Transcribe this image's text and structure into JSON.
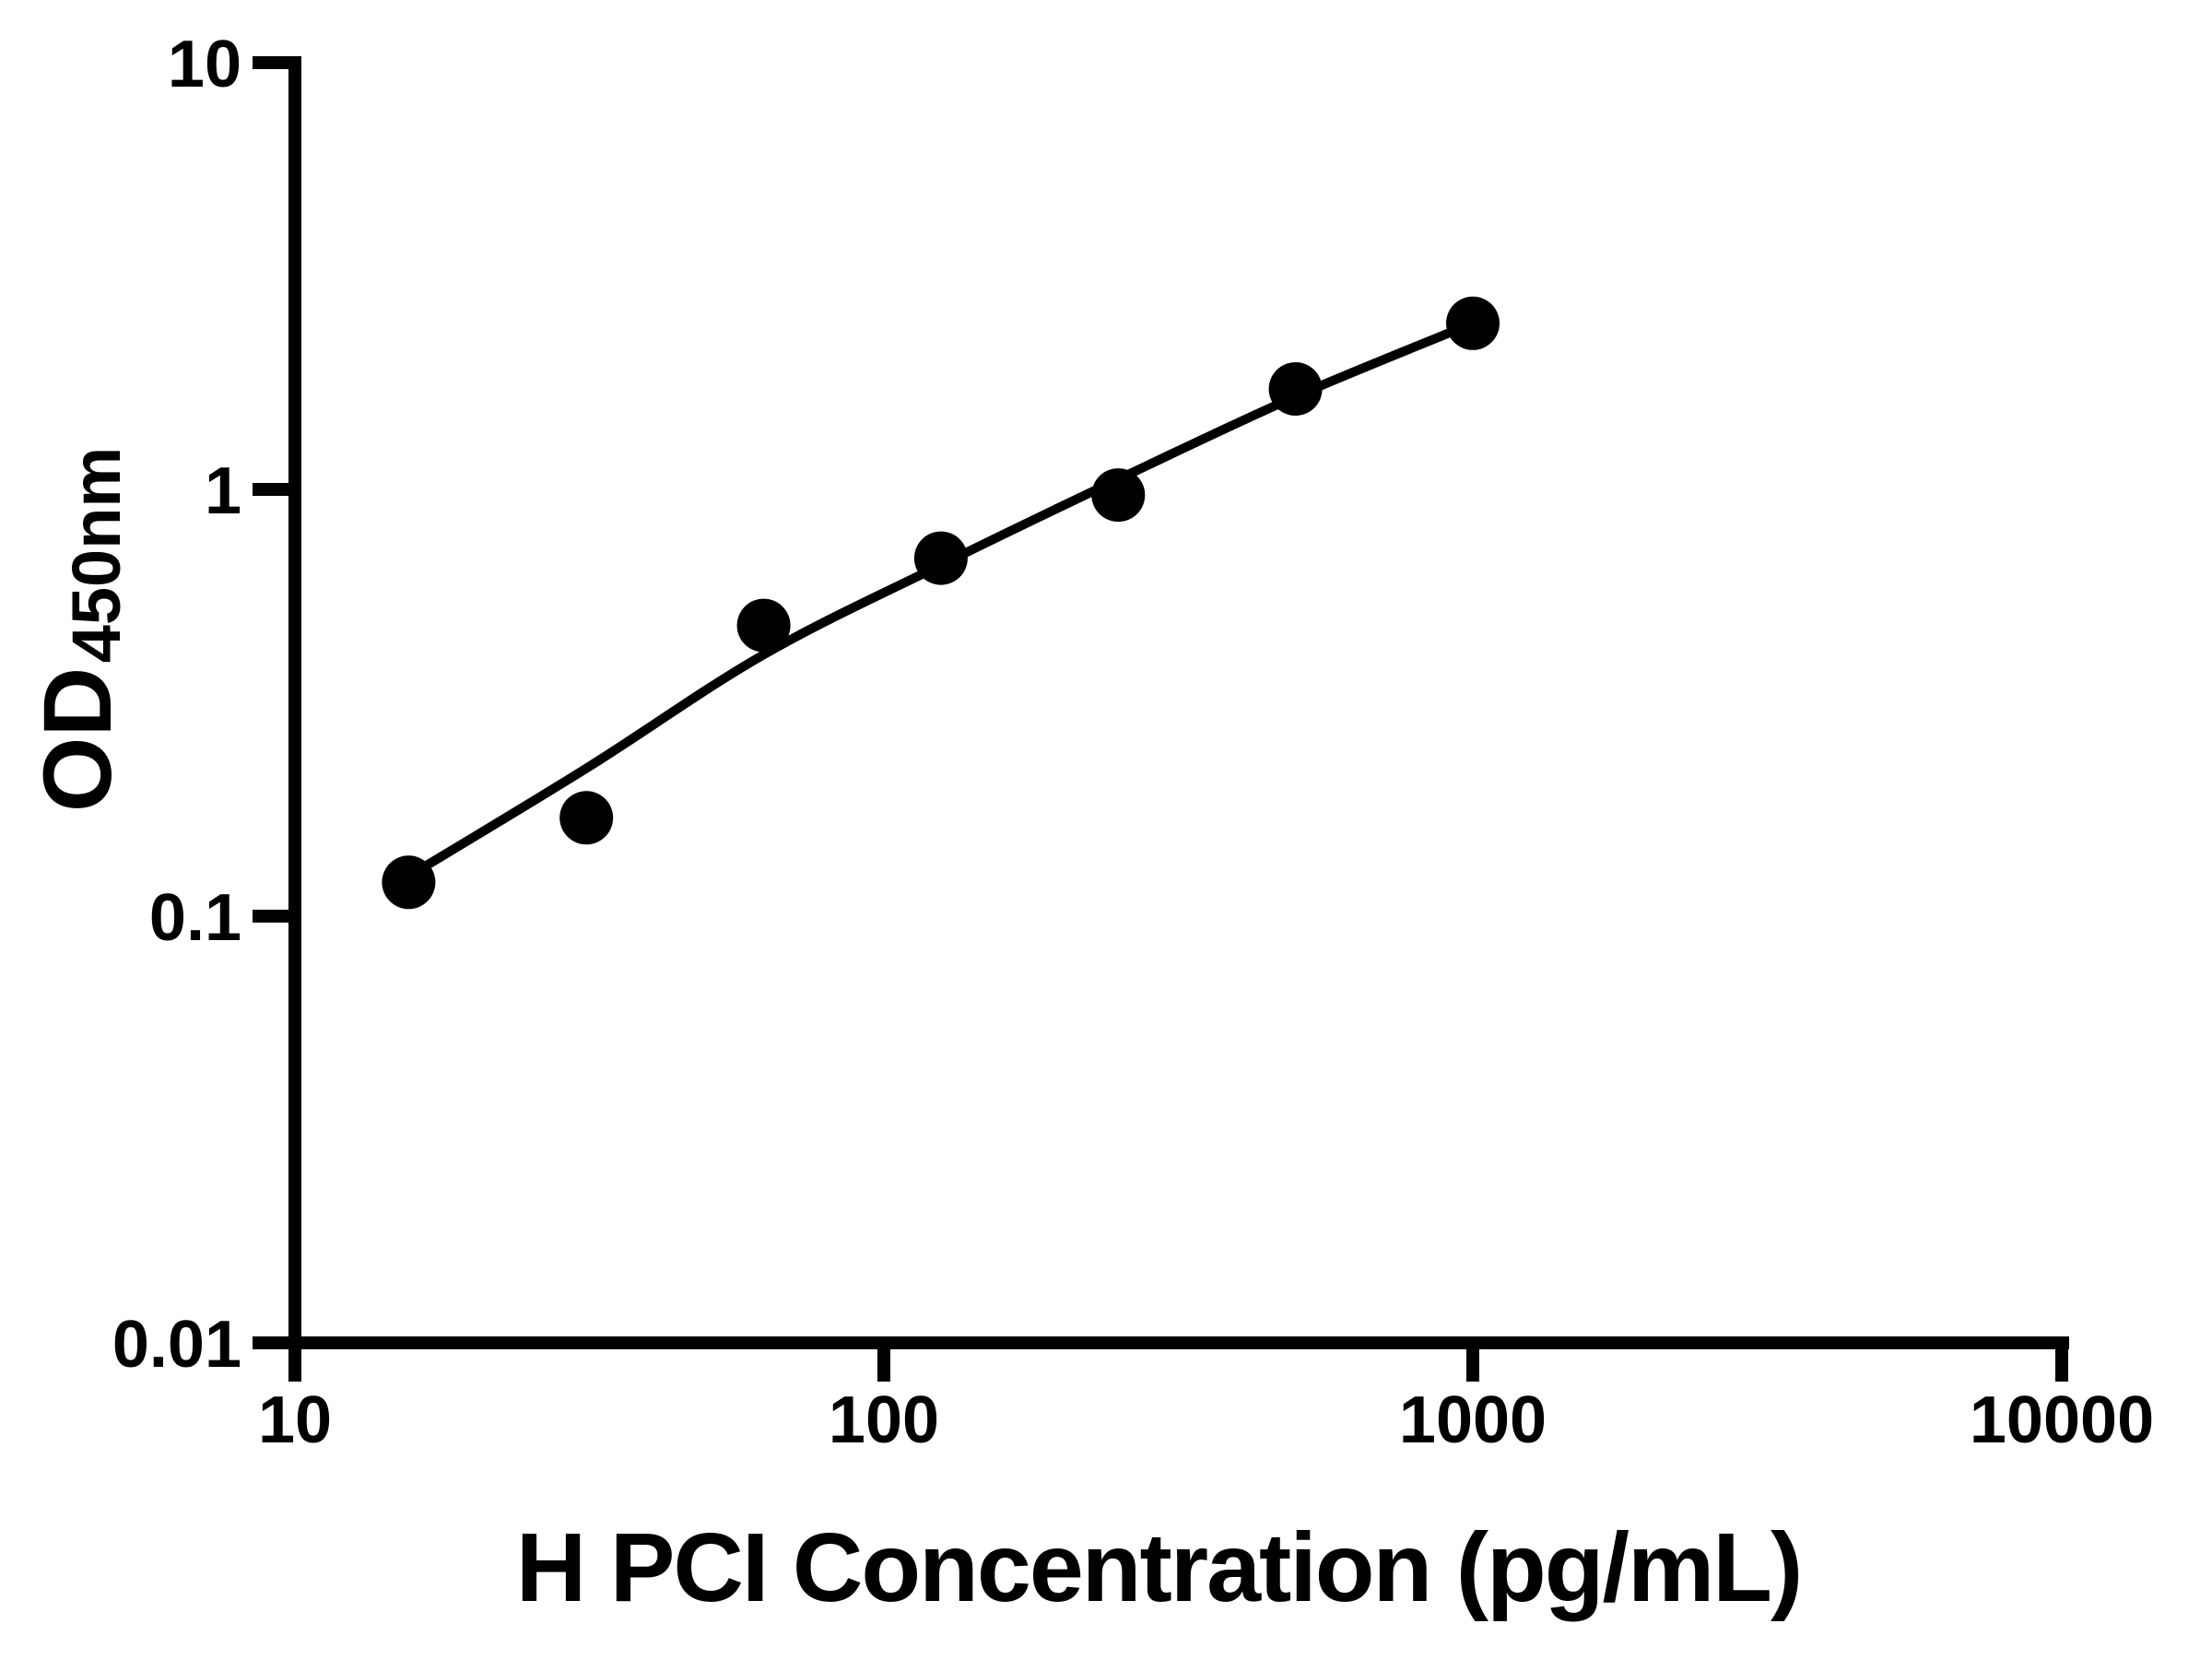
{
  "chart_data": {
    "type": "scatter",
    "title": "",
    "xlabel": "H PCI Concentration (pg/mL)",
    "ylabel_main": "OD",
    "ylabel_sub": "450nm",
    "x_scale": "log",
    "y_scale": "log",
    "xlim": [
      10,
      10000
    ],
    "ylim": [
      0.01,
      10
    ],
    "grid": false,
    "legend": "none",
    "background": "#ffffff",
    "axis_color": "#000000",
    "marker_color": "#000000",
    "line_color": "#000000",
    "x_tick_values": [
      10,
      100,
      1000,
      10000
    ],
    "x_tick_labels": [
      "10",
      "100",
      "1000",
      "10000"
    ],
    "y_tick_values": [
      10,
      1,
      0.1,
      0.01
    ],
    "y_tick_labels": [
      "10",
      "1",
      "0.1",
      "0.01"
    ],
    "points": [
      {
        "x": 15.6,
        "y": 0.12
      },
      {
        "x": 31.25,
        "y": 0.17
      },
      {
        "x": 62.5,
        "y": 0.48
      },
      {
        "x": 125,
        "y": 0.69
      },
      {
        "x": 250,
        "y": 0.97
      },
      {
        "x": 500,
        "y": 1.72
      },
      {
        "x": 1000,
        "y": 2.45
      }
    ],
    "fit_curve": [
      {
        "x": 15.6,
        "y": 0.124
      },
      {
        "x": 31.25,
        "y": 0.222
      },
      {
        "x": 62.5,
        "y": 0.41
      },
      {
        "x": 125,
        "y": 0.665
      },
      {
        "x": 250,
        "y": 1.056
      },
      {
        "x": 500,
        "y": 1.65
      },
      {
        "x": 1000,
        "y": 2.45
      }
    ]
  }
}
